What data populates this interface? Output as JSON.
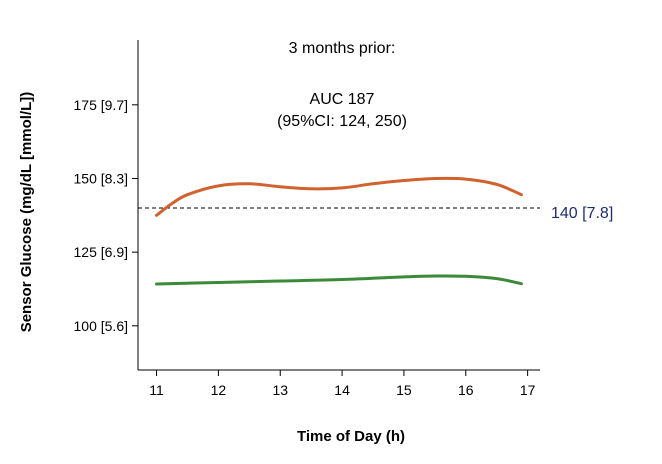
{
  "chart_data": {
    "type": "line",
    "title": "",
    "xlabel": "Time of Day (h)",
    "ylabel": "Sensor Glucose (mg/dL [mmol/L])",
    "xlim": [
      10.7,
      17.2
    ],
    "ylim": [
      85,
      197
    ],
    "x_ticks": [
      11,
      12,
      13,
      14,
      15,
      16,
      17
    ],
    "x_tick_labels": [
      "11",
      "12",
      "13",
      "14",
      "15",
      "16",
      "17"
    ],
    "y_ticks": [
      100,
      125,
      150,
      175
    ],
    "y_tick_labels": [
      "100 [5.6]",
      "125 [6.9]",
      "150 [8.3]",
      "175 [9.7]"
    ],
    "grid": false,
    "annotations": {
      "line1": "3 months prior:",
      "line2": "AUC 187",
      "line3": "(95%CI: 124, 250)"
    },
    "reference_line": {
      "y": 140,
      "label": "140 [7.8]",
      "style": "dashed",
      "color": "#1f2d6b"
    },
    "series": [
      {
        "color": "#d2622d",
        "x": [
          11,
          11.25,
          11.5,
          12,
          12.5,
          13,
          13.5,
          14,
          14.5,
          15,
          15.5,
          16,
          16.5,
          16.9
        ],
        "values": [
          137.5,
          141.5,
          144.5,
          147.5,
          148.2,
          147.2,
          146.5,
          146.8,
          148.2,
          149.3,
          150.0,
          149.8,
          148.0,
          144.5
        ]
      },
      {
        "color": "#3a8a3a",
        "x": [
          11,
          12,
          13,
          14,
          15,
          15.5,
          16,
          16.5,
          16.9
        ],
        "values": [
          114.2,
          114.7,
          115.2,
          115.7,
          116.6,
          116.9,
          116.8,
          116.0,
          114.3
        ]
      }
    ]
  }
}
